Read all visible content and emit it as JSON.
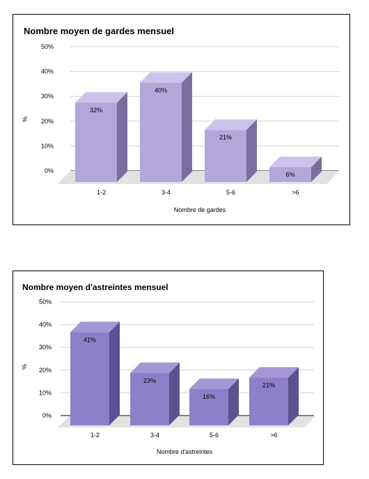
{
  "chart_data": [
    {
      "type": "bar",
      "title": "Nombre moyen de gardes mensuel",
      "xlabel": "Nombre de gardes",
      "ylabel": "%",
      "categories": [
        "1-2",
        "3-4",
        "5-6",
        ">6"
      ],
      "values": [
        32,
        40,
        21,
        6
      ],
      "data_labels": [
        "32%",
        "40%",
        "21%",
        "6%"
      ],
      "ylim": [
        0,
        50
      ],
      "yticks": [
        "0%",
        "10%",
        "20%",
        "30%",
        "40%",
        "50%"
      ],
      "grid": true,
      "style": "3d",
      "colors": {
        "front": "#b3a6d9",
        "top": "#cdc3ea",
        "side": "#7a6e9e",
        "floor": "#e2e2e2"
      }
    },
    {
      "type": "bar",
      "title": "Nombre moyen d'astreintes mensuel",
      "xlabel": "Nombre d'astreintes",
      "ylabel": "%",
      "categories": [
        "1-2",
        "3-4",
        "5-6",
        ">6"
      ],
      "values": [
        41,
        23,
        16,
        21
      ],
      "data_labels": [
        "41%",
        "23%",
        "16%",
        "21%"
      ],
      "ylim": [
        0,
        50
      ],
      "yticks": [
        "0%",
        "10%",
        "20%",
        "30%",
        "40%",
        "50%"
      ],
      "grid": true,
      "style": "3d",
      "colors": {
        "front": "#8e7fc9",
        "top": "#a497d6",
        "side": "#5d5190",
        "floor": "#e2e2e2"
      }
    }
  ]
}
